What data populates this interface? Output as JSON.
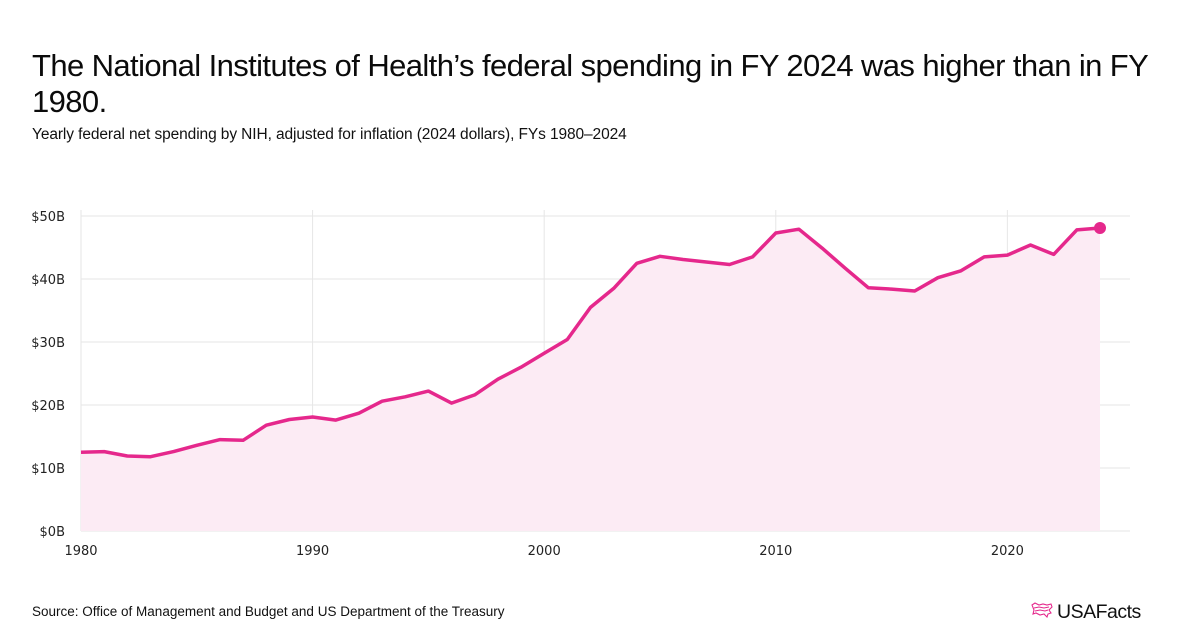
{
  "header": {
    "title": "The National Institutes of Health’s federal spending in FY 2024 was higher than in FY 1980.",
    "subtitle": "Yearly federal net spending by NIH, adjusted for inflation (2024 dollars), FYs 1980–2024"
  },
  "footer": {
    "source": "Source: Office of Management and Budget and US Department of the Treasury",
    "logo_text": "USAFacts",
    "logo_icon": "us-map-icon"
  },
  "colors": {
    "line": "#e5288c",
    "area": "#fcebf4",
    "grid": "#e6e6e6",
    "text": "#111111"
  },
  "chart_data": {
    "type": "area",
    "title": "The National Institutes of Health’s federal spending in FY 2024 was higher than in FY 1980.",
    "subtitle": "Yearly federal net spending by NIH, adjusted for inflation (2024 dollars), FYs 1980–2024",
    "xlabel": "",
    "ylabel": "",
    "unit": "billion USD (2024 dollars)",
    "xlim": [
      1980,
      2024
    ],
    "ylim": [
      0,
      50
    ],
    "x_ticks": [
      1980,
      1990,
      2000,
      2010,
      2020
    ],
    "x_tick_labels": [
      "1980",
      "1990",
      "2000",
      "2010",
      "2020"
    ],
    "y_ticks": [
      0,
      10,
      20,
      30,
      40,
      50
    ],
    "y_tick_labels": [
      "$0B",
      "$10B",
      "$20B",
      "$30B",
      "$40B",
      "$50B"
    ],
    "grid": true,
    "legend": "none",
    "highlight_last_point": true,
    "series": [
      {
        "name": "NIH federal net spending",
        "x": [
          1980,
          1981,
          1982,
          1983,
          1984,
          1985,
          1986,
          1987,
          1988,
          1989,
          1990,
          1991,
          1992,
          1993,
          1994,
          1995,
          1996,
          1997,
          1998,
          1999,
          2000,
          2001,
          2002,
          2003,
          2004,
          2005,
          2006,
          2007,
          2008,
          2009,
          2010,
          2011,
          2012,
          2013,
          2014,
          2015,
          2016,
          2017,
          2018,
          2019,
          2020,
          2021,
          2022,
          2023,
          2024
        ],
        "values": [
          12.5,
          12.6,
          11.9,
          11.8,
          12.6,
          13.6,
          14.5,
          14.4,
          16.8,
          17.7,
          18.1,
          17.6,
          18.7,
          20.6,
          21.3,
          22.2,
          20.3,
          21.6,
          24.1,
          26.0,
          28.2,
          30.4,
          35.5,
          38.5,
          42.5,
          43.6,
          43.1,
          42.7,
          42.3,
          43.5,
          47.3,
          47.9,
          44.9,
          41.7,
          38.6,
          38.4,
          38.1,
          40.2,
          41.3,
          43.5,
          43.8,
          45.4,
          43.9,
          47.8,
          48.1
        ]
      }
    ]
  }
}
